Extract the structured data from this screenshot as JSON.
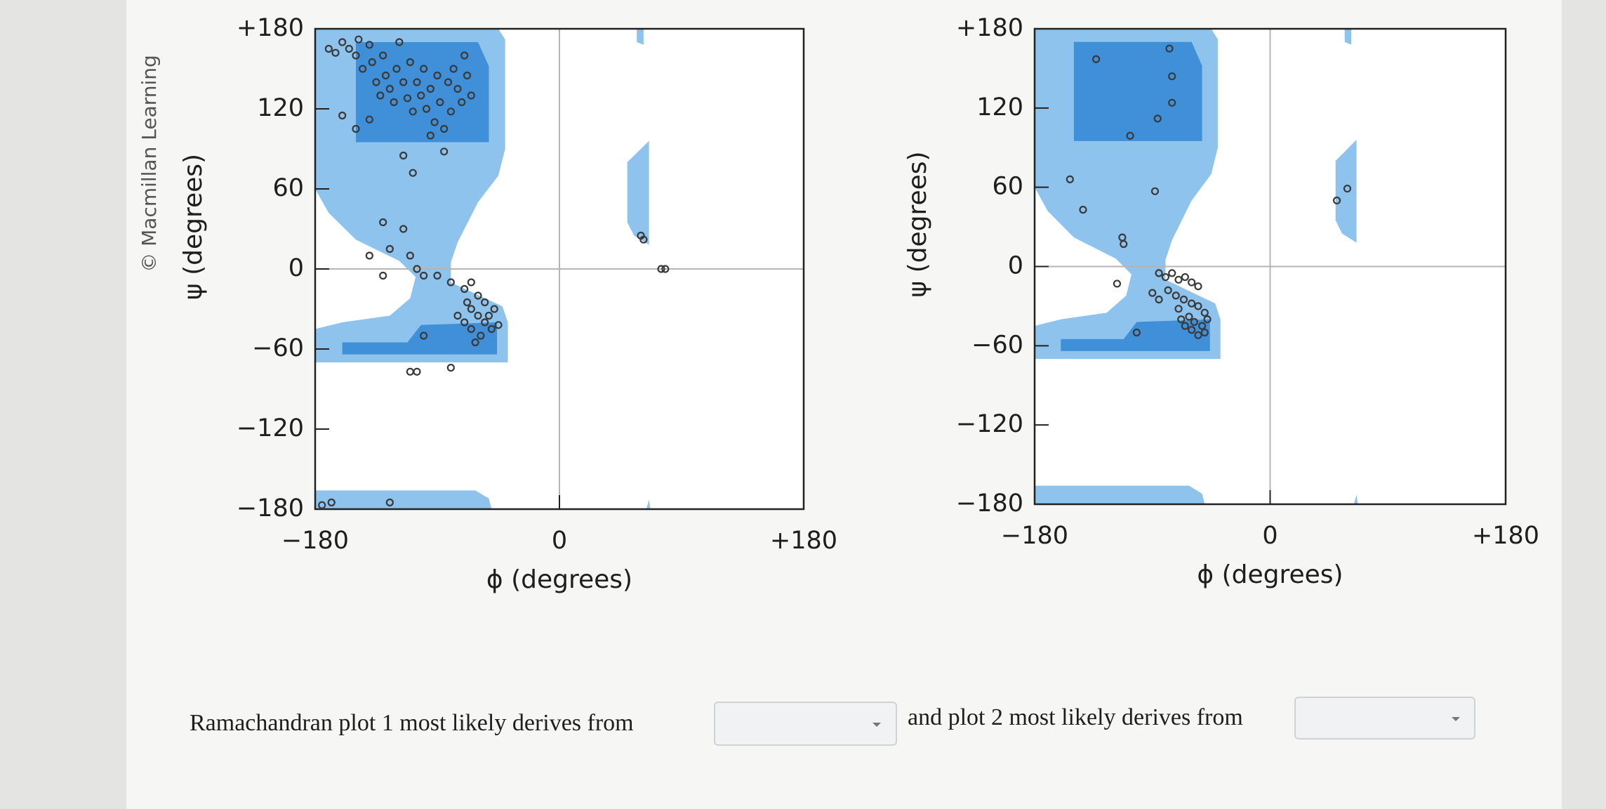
{
  "credit": "© Macmillan Learning",
  "chart_data": [
    {
      "type": "scatter",
      "x_label": "ϕ (degrees)",
      "y_label": "ψ (degrees)",
      "xlim": [
        -180,
        180
      ],
      "ylim": [
        -180,
        180
      ],
      "xticks": [
        {
          "value": -180,
          "label": "−180"
        },
        0,
        {
          "value": 180,
          "label": "+180"
        }
      ],
      "yticks": [
        {
          "value": 180,
          "label": "+180"
        },
        120,
        60,
        0,
        {
          "value": -60,
          "label": "−60"
        },
        {
          "value": -120,
          "label": "−120"
        },
        {
          "value": -180,
          "label": "−180"
        }
      ],
      "zero_lines": true,
      "color": "#3a3a3a",
      "x": [
        -170,
        -165,
        -160,
        -155,
        -150,
        -148,
        -145,
        -140,
        -138,
        -135,
        -132,
        -130,
        -128,
        -125,
        -122,
        -120,
        -118,
        -115,
        -112,
        -110,
        -108,
        -105,
        -102,
        -100,
        -98,
        -95,
        -92,
        -90,
        -88,
        -85,
        -82,
        -80,
        -78,
        -75,
        -72,
        -70,
        -68,
        -65,
        -160,
        -150,
        -140,
        -95,
        -85,
        -115,
        -108,
        -130,
        -115,
        -125,
        -140,
        -110,
        -105,
        -100,
        -90,
        -80,
        -130,
        -70,
        -65,
        -60,
        -55,
        -65,
        -60,
        -55,
        -50,
        -70,
        -65,
        -58,
        -52,
        -48,
        -62,
        -75,
        -45,
        -68,
        -100,
        -110,
        -105,
        -80,
        -175,
        -125,
        -168,
        60,
        62,
        75,
        78
      ],
      "values": [
        165,
        162,
        170,
        165,
        160,
        172,
        150,
        168,
        155,
        140,
        130,
        160,
        145,
        135,
        125,
        150,
        170,
        140,
        128,
        155,
        118,
        140,
        130,
        150,
        120,
        135,
        110,
        145,
        125,
        105,
        140,
        118,
        150,
        135,
        125,
        160,
        145,
        130,
        115,
        105,
        112,
        100,
        88,
        85,
        72,
        35,
        30,
        15,
        10,
        10,
        0,
        -5,
        -5,
        -10,
        -5,
        -15,
        -10,
        -20,
        -25,
        -30,
        -35,
        -40,
        -45,
        -40,
        -45,
        -50,
        -35,
        -30,
        -55,
        -35,
        -42,
        -25,
        -50,
        -77,
        -77,
        -74,
        -177,
        -175,
        -175,
        25,
        22,
        0,
        0
      ]
    },
    {
      "type": "scatter",
      "x_label": "ϕ (degrees)",
      "y_label": "ψ (degrees)",
      "xlim": [
        -180,
        180
      ],
      "ylim": [
        -180,
        180
      ],
      "xticks": [
        {
          "value": -180,
          "label": "−180"
        },
        0,
        {
          "value": 180,
          "label": "+180"
        }
      ],
      "yticks": [
        {
          "value": 180,
          "label": "+180"
        },
        120,
        60,
        0,
        {
          "value": -60,
          "label": "−60"
        },
        {
          "value": -120,
          "label": "−120"
        },
        {
          "value": -180,
          "label": "−180"
        }
      ],
      "zero_lines": true,
      "color": "#3a3a3a",
      "x": [
        -133,
        -77,
        -75,
        -75,
        -86,
        -107,
        -153,
        -143,
        -88,
        -113,
        -112,
        -117,
        -102,
        -85,
        -80,
        -75,
        -70,
        -65,
        -60,
        -55,
        -78,
        -72,
        -66,
        -60,
        -55,
        -50,
        -62,
        -68,
        -58,
        -52,
        -60,
        -55,
        -48,
        -65,
        -70,
        -85,
        -90,
        -50,
        51,
        59
      ],
      "values": [
        157,
        165,
        144,
        124,
        112,
        99,
        66,
        43,
        57,
        22,
        17,
        -13,
        -50,
        -5,
        -8,
        -5,
        -10,
        -8,
        -12,
        -15,
        -18,
        -22,
        -25,
        -28,
        -30,
        -35,
        -38,
        -40,
        -42,
        -45,
        -48,
        -52,
        -40,
        -45,
        -32,
        -25,
        -20,
        -50,
        50,
        59
      ]
    }
  ],
  "question": {
    "text_1": "Ramachandran plot 1 most likely derives from",
    "text_2": "and plot 2 most likely derives from"
  }
}
